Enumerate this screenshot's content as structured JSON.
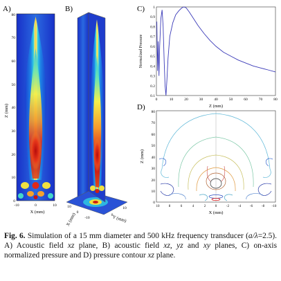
{
  "figure": {
    "panel_labels": {
      "a": "A)",
      "b": "B)",
      "c": "C)",
      "d": "D)"
    },
    "panel_a": {
      "xlabel": "X (mm)",
      "ylabel": "Z (mm)",
      "x_ticks": [
        "-10",
        "0",
        "10"
      ],
      "y_ticks": [
        "80",
        "70",
        "60",
        "50",
        "40",
        "30",
        "20",
        "10",
        "0"
      ]
    },
    "panel_b": {
      "xlabel": "X (mm)",
      "ylabel": "Y (mm)",
      "x_ticks": [
        "10",
        "0",
        "-10"
      ],
      "y_ticks": [
        "0",
        "10"
      ]
    },
    "panel_d": {
      "xlabel": "X (mm)",
      "ylabel": "Z (mm)",
      "x_ticks": [
        "10",
        "8",
        "6",
        "4",
        "2",
        "0",
        "-2",
        "-4",
        "-6",
        "-8",
        "-10"
      ],
      "y_ticks": [
        "80",
        "70",
        "60",
        "50",
        "40",
        "30",
        "20",
        "10",
        "0"
      ]
    }
  },
  "chart_data": {
    "type": "line",
    "xlabel": "Z (mm)",
    "ylabel": "Normalized Pressure",
    "xlim": [
      0,
      80
    ],
    "ylim": [
      0.1,
      1
    ],
    "x_ticks": [
      0,
      10,
      20,
      30,
      40,
      50,
      60,
      70,
      80
    ],
    "y_ticks": [
      0.1,
      0.2,
      0.3,
      0.4,
      0.5,
      0.6,
      0.7,
      0.8,
      0.9,
      1
    ],
    "series": [
      {
        "x": [
          0.3,
          0.8,
          1.2,
          1.7,
          2.2,
          3.0,
          3.8,
          4.5,
          5.2,
          5.8,
          6.4,
          7.0,
          7.8,
          9.0,
          11.0,
          13.0,
          15.0,
          17.0,
          18.5,
          20.0,
          22.0,
          25.0,
          28.0,
          32.0,
          36.0,
          40.0,
          45.0,
          50.0,
          55.0,
          60.0,
          65.0,
          70.0,
          75.0,
          80.0
        ],
        "y": [
          0.85,
          0.35,
          0.65,
          0.3,
          0.6,
          0.88,
          0.97,
          0.8,
          0.45,
          0.2,
          0.1,
          0.25,
          0.48,
          0.7,
          0.84,
          0.92,
          0.96,
          0.99,
          1.0,
          0.99,
          0.95,
          0.88,
          0.81,
          0.73,
          0.66,
          0.6,
          0.54,
          0.5,
          0.46,
          0.43,
          0.4,
          0.38,
          0.36,
          0.34
        ]
      }
    ]
  },
  "caption": {
    "fig": "Fig. 6.",
    "t1": " Simulation of a 15 mm diameter and 500 kHz frequency transducer (",
    "t2": "a/λ",
    "t3": "=2.5). A) Acoustic field ",
    "t4": "xz",
    "t5": " plane, B) acoustic field ",
    "t6": "xz, yz",
    "t7": " and ",
    "t8": "xy",
    "t9": " planes, C) on-axis normalized pressure and D) pressure contour ",
    "t10": "xz",
    "t11": " plane."
  }
}
